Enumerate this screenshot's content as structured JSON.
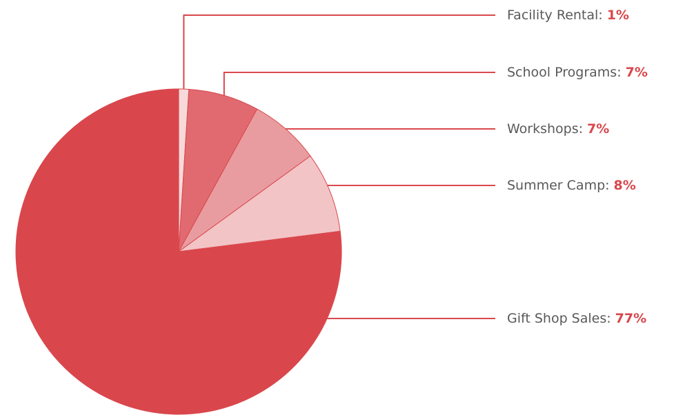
{
  "chart_data": {
    "type": "pie",
    "categories": [
      "Facility Rental",
      "School Programs",
      "Workshops",
      "Summer Camp",
      "Gift Shop Sales"
    ],
    "values": [
      1,
      7,
      7,
      8,
      77
    ],
    "value_labels": [
      "1%",
      "7%",
      "7%",
      "8%",
      "77%"
    ],
    "label_separator": ":",
    "colors": [
      "#f7d9da",
      "#e06a70",
      "#e99ca0",
      "#f2c4c6",
      "#d9474c"
    ]
  }
}
